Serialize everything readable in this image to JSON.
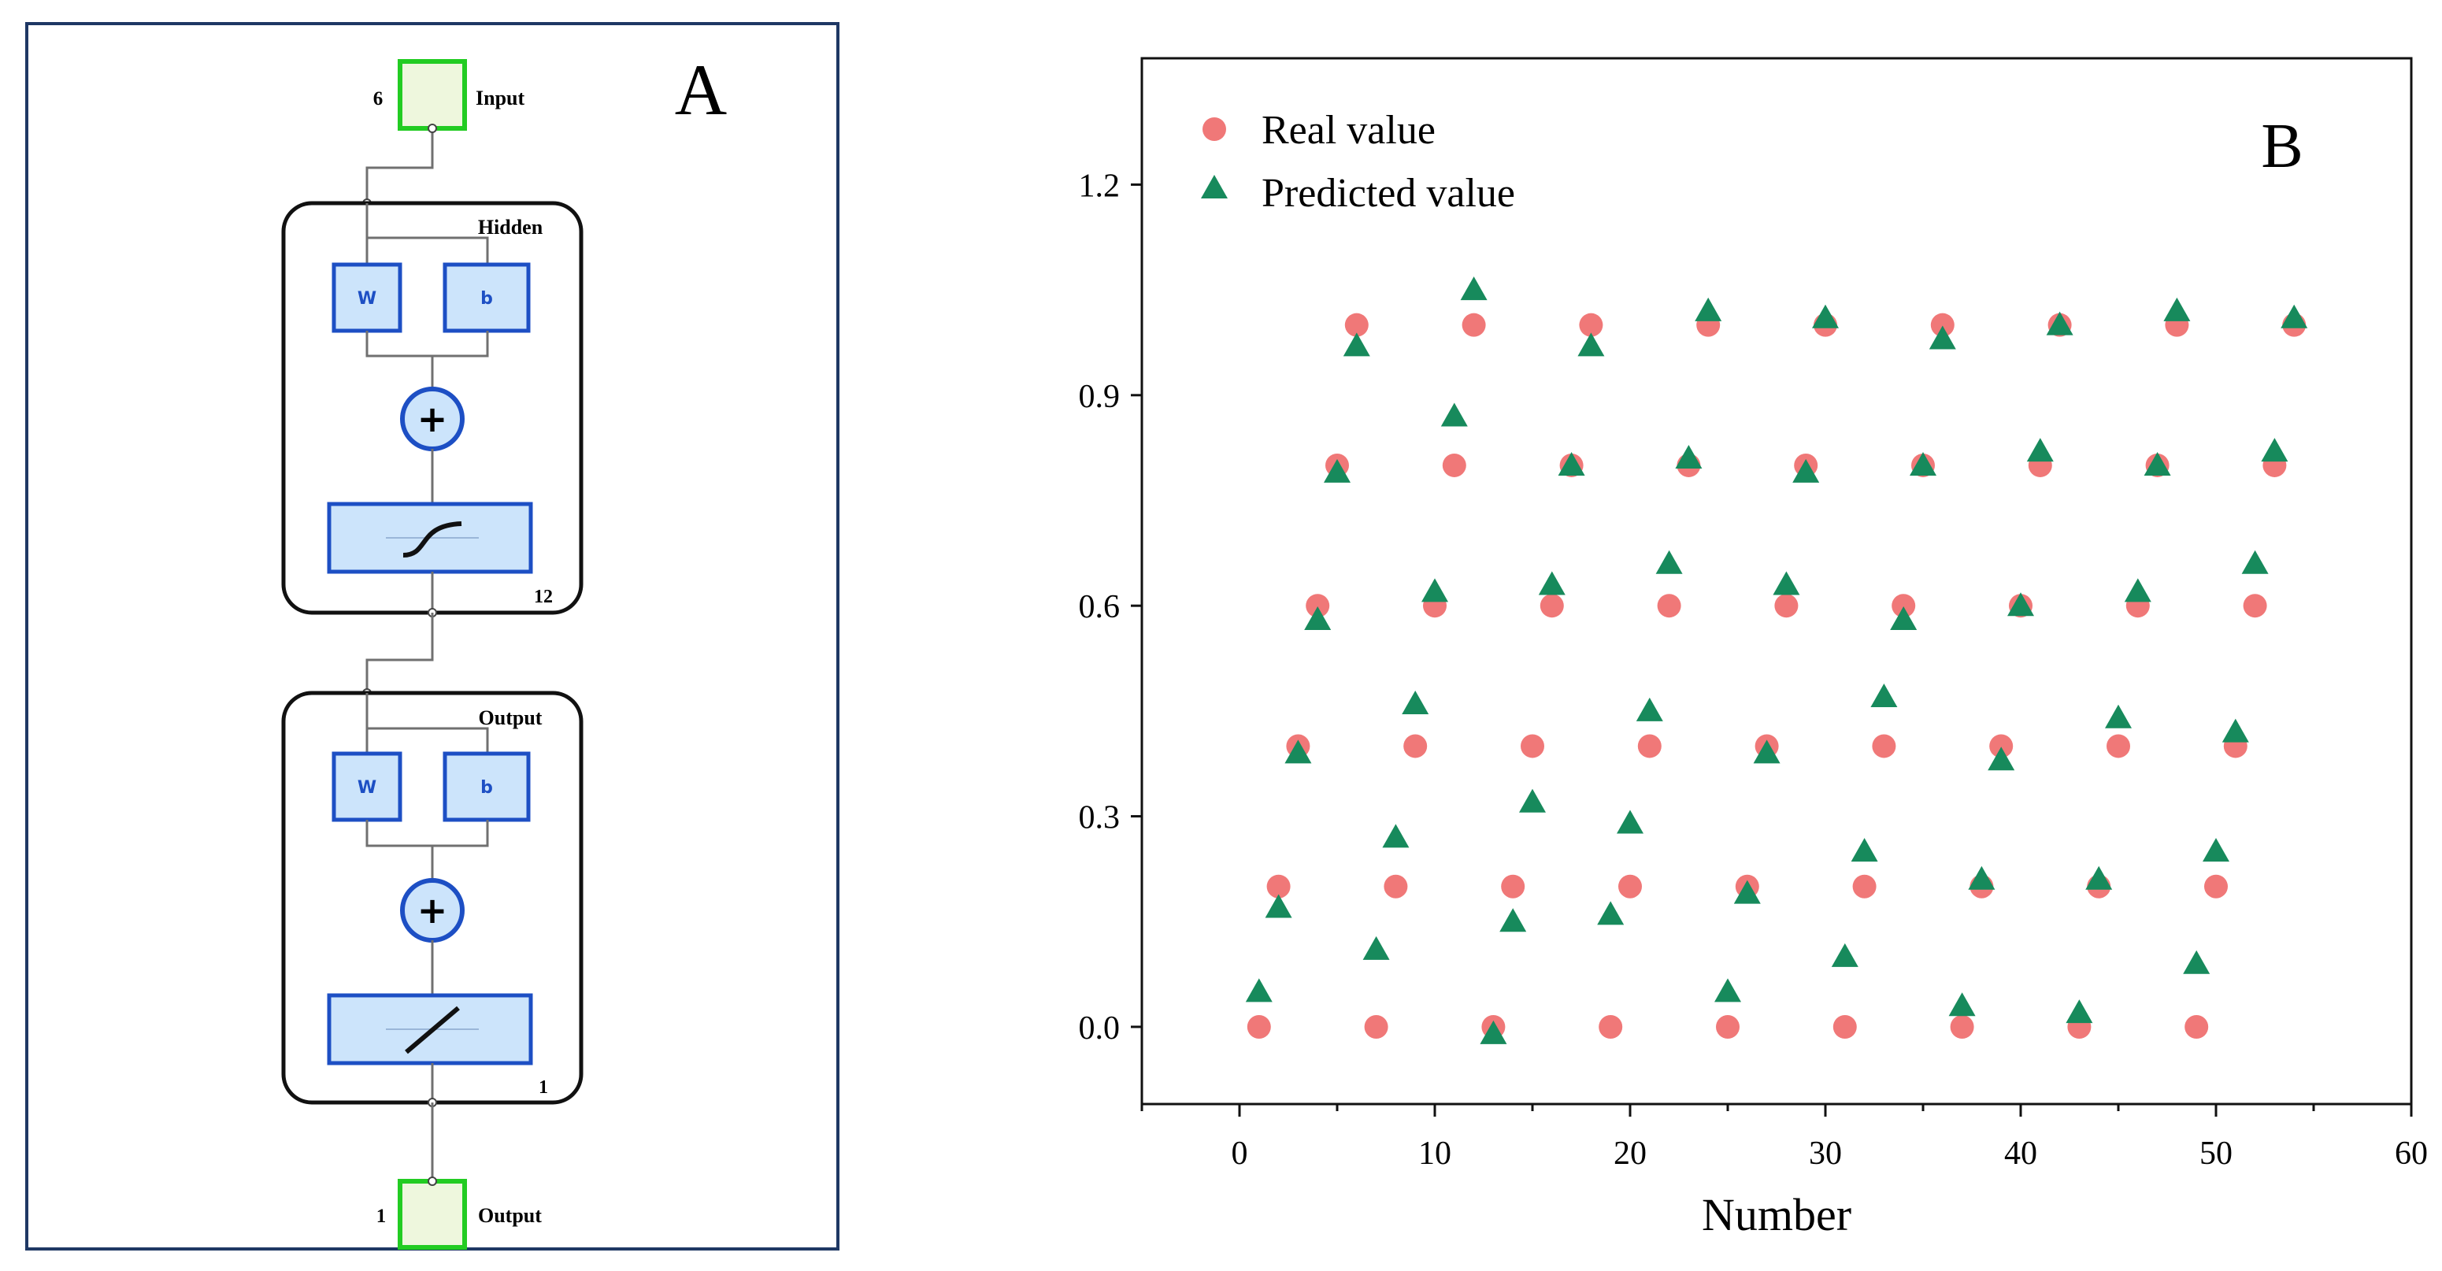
{
  "panel_a": {
    "label": "A",
    "input": {
      "label": "Input",
      "size": "6"
    },
    "hidden": {
      "title": "Hidden",
      "weight": "W",
      "bias": "b",
      "units": "12",
      "activation": "sigmoid"
    },
    "output_layer": {
      "title": "Output",
      "weight": "W",
      "bias": "b",
      "units": "1",
      "activation": "linear"
    },
    "output": {
      "label": "Output",
      "size": "1"
    },
    "sum_symbol": "+",
    "colors": {
      "frame": "#1f3864",
      "io_border": "#22cc22",
      "io_fill": "#eef7dd",
      "block_border": "#1d4fc4",
      "block_fill": "#cce4fb"
    }
  },
  "chart_data": {
    "type": "scatter",
    "panel_label": "B",
    "title": "",
    "xlabel": "Number",
    "ylabel": "",
    "xlim": [
      -5,
      60
    ],
    "ylim": [
      -0.11,
      1.38
    ],
    "xticks": [
      0,
      10,
      20,
      30,
      40,
      50,
      60
    ],
    "yticks": [
      0.0,
      0.3,
      0.6,
      0.9,
      1.2
    ],
    "ytick_labels": [
      "0.0",
      "0.3",
      "0.6",
      "0.9",
      "1.2"
    ],
    "legend_position": "top-left",
    "series": [
      {
        "name": "Real value",
        "marker": "circle",
        "color": "#f07878",
        "x": [
          1,
          2,
          3,
          4,
          5,
          6,
          7,
          8,
          9,
          10,
          11,
          12,
          13,
          14,
          15,
          16,
          17,
          18,
          19,
          20,
          21,
          22,
          23,
          24,
          25,
          26,
          27,
          28,
          29,
          30,
          31,
          32,
          33,
          34,
          35,
          36,
          37,
          38,
          39,
          40,
          41,
          42,
          43,
          44,
          45,
          46,
          47,
          48,
          49,
          50,
          51,
          52,
          53,
          54
        ],
        "y": [
          0.0,
          0.2,
          0.4,
          0.6,
          0.8,
          1.0,
          0.0,
          0.2,
          0.4,
          0.6,
          0.8,
          1.0,
          0.0,
          0.2,
          0.4,
          0.6,
          0.8,
          1.0,
          0.0,
          0.2,
          0.4,
          0.6,
          0.8,
          1.0,
          0.0,
          0.2,
          0.4,
          0.6,
          0.8,
          1.0,
          0.0,
          0.2,
          0.4,
          0.6,
          0.8,
          1.0,
          0.0,
          0.2,
          0.4,
          0.6,
          0.8,
          1.0,
          0.0,
          0.2,
          0.4,
          0.6,
          0.8,
          1.0,
          0.0,
          0.2,
          0.4,
          0.6,
          0.8,
          1.0
        ]
      },
      {
        "name": "Predicted value",
        "marker": "triangle",
        "color": "#178a5c",
        "x": [
          1,
          2,
          3,
          4,
          5,
          6,
          7,
          8,
          9,
          10,
          11,
          12,
          13,
          14,
          15,
          16,
          17,
          18,
          19,
          20,
          21,
          22,
          23,
          24,
          25,
          26,
          27,
          28,
          29,
          30,
          31,
          32,
          33,
          34,
          35,
          36,
          37,
          38,
          39,
          40,
          41,
          42,
          43,
          44,
          45,
          46,
          47,
          48,
          49,
          50,
          51,
          52,
          53,
          54
        ],
        "y": [
          0.05,
          0.17,
          0.39,
          0.58,
          0.79,
          0.97,
          0.11,
          0.27,
          0.46,
          0.62,
          0.87,
          1.05,
          -0.01,
          0.15,
          0.32,
          0.63,
          0.8,
          0.97,
          0.16,
          0.29,
          0.45,
          0.66,
          0.81,
          1.02,
          0.05,
          0.19,
          0.39,
          0.63,
          0.79,
          1.01,
          0.1,
          0.25,
          0.47,
          0.58,
          0.8,
          0.98,
          0.03,
          0.21,
          0.38,
          0.6,
          0.82,
          1.0,
          0.02,
          0.21,
          0.44,
          0.62,
          0.8,
          1.02,
          0.09,
          0.25,
          0.42,
          0.66,
          0.82,
          1.01
        ]
      }
    ]
  }
}
